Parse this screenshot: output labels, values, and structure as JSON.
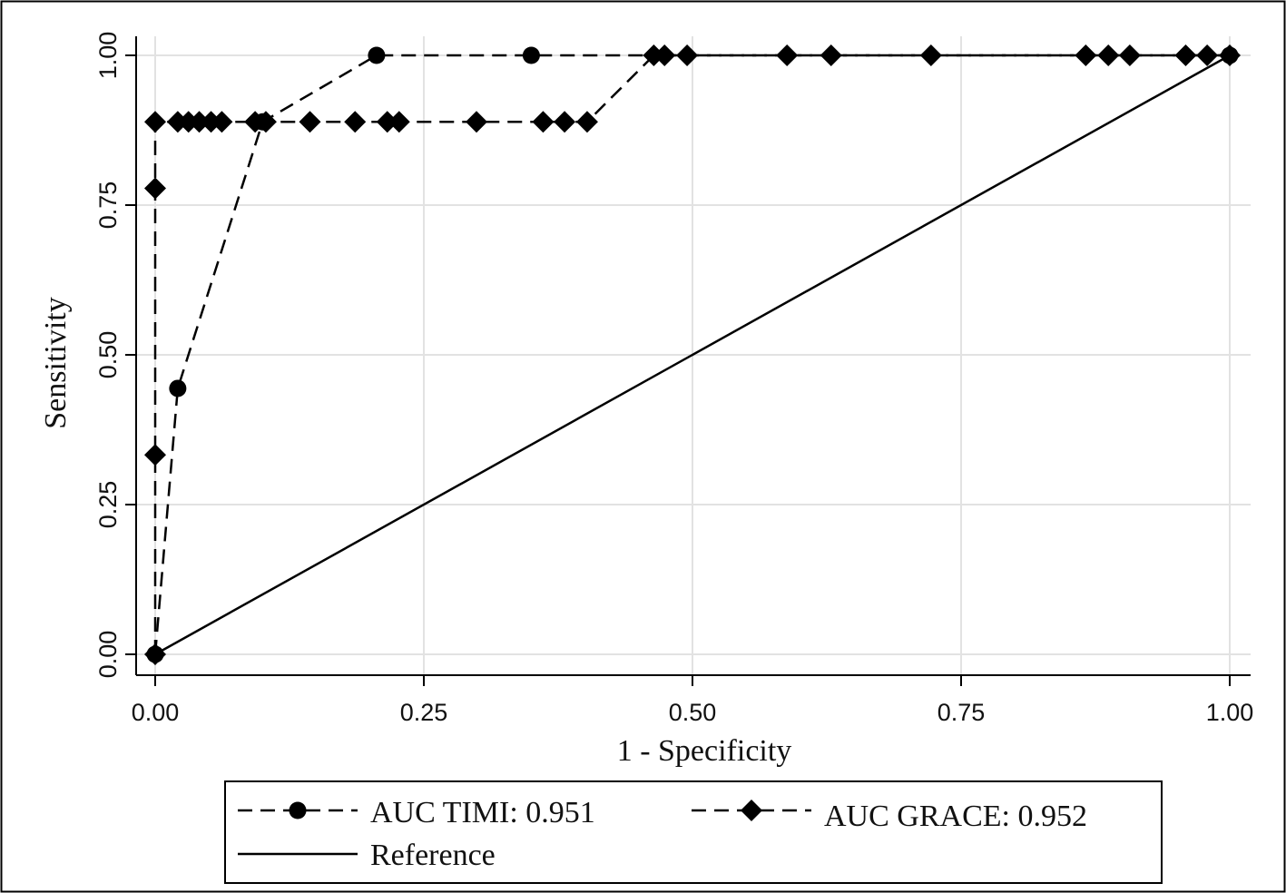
{
  "chart_data": {
    "type": "line",
    "title": "",
    "xlabel": "1 - Specificity",
    "ylabel": "Sensitivity",
    "xlim": [
      0,
      1
    ],
    "ylim": [
      0,
      1
    ],
    "xticks": [
      "0.00",
      "0.25",
      "0.50",
      "0.75",
      "1.00"
    ],
    "yticks": [
      "0.00",
      "0.25",
      "0.50",
      "0.75",
      "1.00"
    ],
    "grid": true,
    "legend_position": "bottom",
    "series": [
      {
        "name": "AUC TIMI: 0.951",
        "marker": "circle",
        "line_style": "dashed",
        "color": "#000000",
        "x": [
          0.0,
          0.021,
          0.1,
          0.206,
          0.35,
          1.0
        ],
        "y": [
          0.0,
          0.444,
          0.889,
          1.0,
          1.0,
          1.0
        ]
      },
      {
        "name": "AUC GRACE: 0.952",
        "marker": "diamond",
        "line_style": "dashed",
        "color": "#000000",
        "x": [
          0.0,
          0.0,
          0.0,
          0.0,
          0.021,
          0.031,
          0.041,
          0.052,
          0.062,
          0.093,
          0.103,
          0.144,
          0.186,
          0.216,
          0.227,
          0.299,
          0.361,
          0.381,
          0.402,
          0.464,
          0.474,
          0.495,
          0.588,
          0.629,
          0.722,
          0.866,
          0.887,
          0.907,
          0.959,
          0.979,
          1.0
        ],
        "y": [
          0.0,
          0.333,
          0.778,
          0.889,
          0.889,
          0.889,
          0.889,
          0.889,
          0.889,
          0.889,
          0.889,
          0.889,
          0.889,
          0.889,
          0.889,
          0.889,
          0.889,
          0.889,
          0.889,
          1.0,
          1.0,
          1.0,
          1.0,
          1.0,
          1.0,
          1.0,
          1.0,
          1.0,
          1.0,
          1.0,
          1.0
        ]
      },
      {
        "name": "Reference",
        "marker": "none",
        "line_style": "solid",
        "color": "#000000",
        "x": [
          0.0,
          1.0
        ],
        "y": [
          0.0,
          1.0
        ]
      }
    ]
  }
}
